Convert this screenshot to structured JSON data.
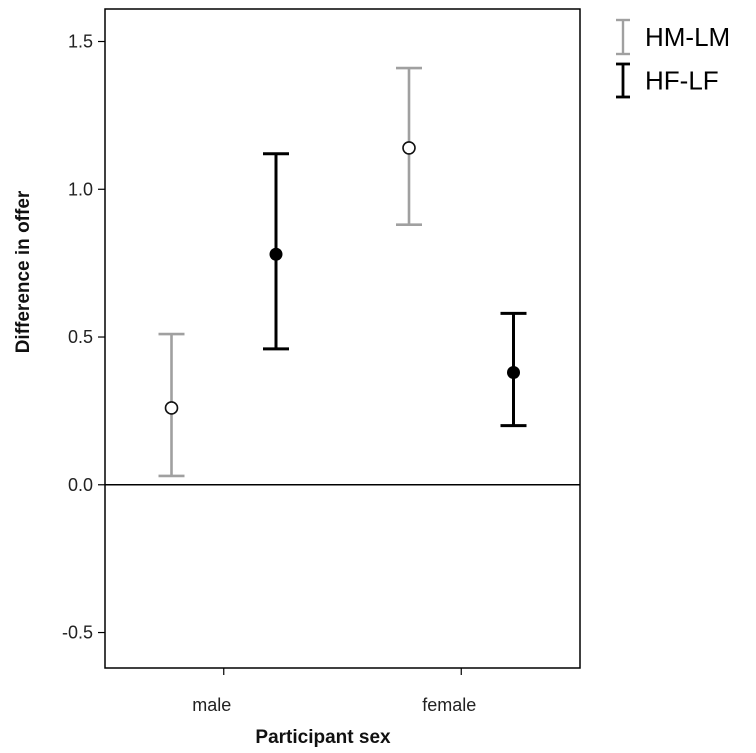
{
  "chart_data": {
    "type": "errorbar",
    "title": "",
    "xlabel": "Participant sex",
    "ylabel": "Difference in offer",
    "categories": [
      "male",
      "female"
    ],
    "ylim": [
      -0.62,
      1.61
    ],
    "yticks": [
      -0.5,
      0.0,
      0.5,
      1.0,
      1.5
    ],
    "ytick_labels": [
      "-0.5",
      "0.0",
      "0.5",
      "1.0",
      "1.5"
    ],
    "reference_line": 0.0,
    "grid": false,
    "legend_position": "top-right, outside plot",
    "series": [
      {
        "name": "HM-LM",
        "color": "#a0a0a0",
        "marker": "open-circle",
        "means": [
          0.26,
          1.14
        ],
        "lower": [
          0.03,
          0.88
        ],
        "upper": [
          0.51,
          1.41
        ]
      },
      {
        "name": "HF-LF",
        "color": "#000000",
        "marker": "filled-circle",
        "means": [
          0.78,
          0.38
        ],
        "lower": [
          0.46,
          0.2
        ],
        "upper": [
          1.12,
          0.58
        ]
      }
    ]
  }
}
